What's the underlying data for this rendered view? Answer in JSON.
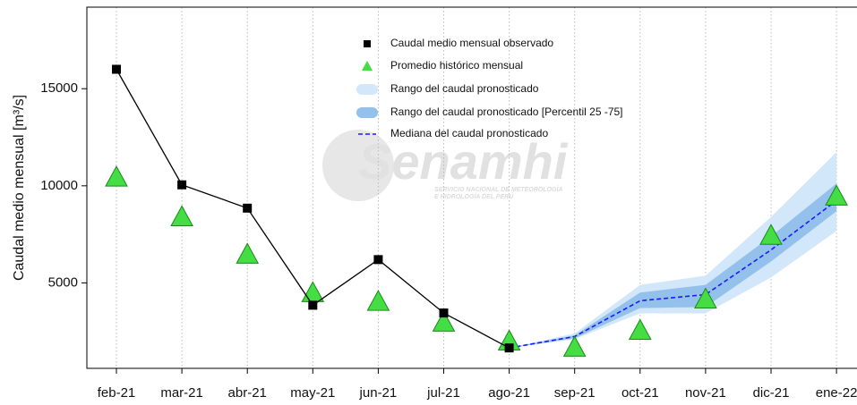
{
  "chart_data": {
    "type": "line",
    "ylabel": "Caudal medio mensual  [m³/s]",
    "watermark": {
      "brand": "Senamhi",
      "line1": "SERVICIO NACIONAL DE METEOROLOGÍA",
      "line2": "E HIDROLOGÍA DEL PERÚ"
    },
    "categories": [
      "feb-21",
      "mar-21",
      "abr-21",
      "may-21",
      "jun-21",
      "jul-21",
      "ago-21",
      "sep-21",
      "oct-21",
      "nov-21",
      "dic-21",
      "ene-22"
    ],
    "ylim": [
      600,
      19200
    ],
    "yticks": [
      5000,
      10000,
      15000
    ],
    "grid": "x",
    "series": [
      {
        "name": "Caudal medio mensual observado",
        "color": "#000000",
        "marker": "square",
        "values": [
          16000,
          10050,
          8850,
          3850,
          6200,
          3450,
          1650,
          null,
          null,
          null,
          null,
          null
        ]
      },
      {
        "name": "Promedio histórico mensual",
        "color": "#44dd44",
        "marker": "triangle",
        "values": [
          10400,
          8360,
          6430,
          4450,
          4000,
          2930,
          1960,
          1640,
          2510,
          4120,
          7400,
          9420
        ]
      },
      {
        "name": "Rango del caudal pronosticado",
        "color": "#d3e7fb",
        "low": [
          null,
          null,
          null,
          null,
          null,
          null,
          1650,
          2100,
          3430,
          3430,
          5280,
          7670
        ],
        "high": [
          null,
          null,
          null,
          null,
          null,
          null,
          1650,
          2400,
          4900,
          5370,
          8400,
          11730
        ]
      },
      {
        "name": "Rango del caudal pronosticado [Percentil 25 -75]",
        "color": "#93c1ec",
        "low": [
          null,
          null,
          null,
          null,
          null,
          null,
          1650,
          2150,
          3700,
          3760,
          6100,
          8690
        ],
        "high": [
          null,
          null,
          null,
          null,
          null,
          null,
          1650,
          2300,
          4500,
          4900,
          7400,
          10120
        ]
      },
      {
        "name": "Mediana del caudal pronosticado",
        "color": "#1a1aff",
        "dash": true,
        "values": [
          null,
          null,
          null,
          null,
          null,
          null,
          1650,
          2240,
          4080,
          4400,
          6700,
          9240
        ]
      }
    ]
  }
}
